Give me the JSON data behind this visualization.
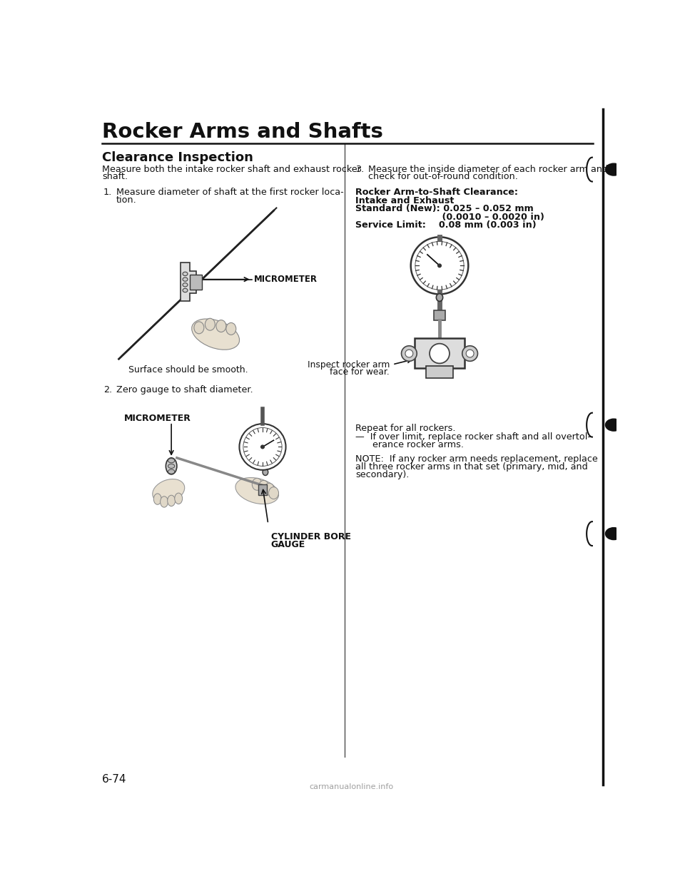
{
  "page_bg": "#ffffff",
  "title": "Rocker Arms and Shafts",
  "section": "Clearance Inspection",
  "left_col": {
    "intro_line1": "Measure both the intake rocker shaft and exhaust rocker",
    "intro_line2": "shaft.",
    "step1_num": "1.",
    "step1_line1": "Measure diameter of shaft at the first rocker loca-",
    "step1_line2": "tion.",
    "fig1_label": "MICROMETER",
    "fig1_caption": "Surface should be smooth.",
    "step2_num": "2.",
    "step2_text": "Zero gauge to shaft diameter.",
    "fig2_label": "MICROMETER",
    "fig2_caption_line1": "CYLINDER BORE",
    "fig2_caption_line2": "GAUGE"
  },
  "right_col": {
    "step3_num": "3.",
    "step3_line1": "Measure the inside diameter of each rocker arm and",
    "step3_line2": "check for out-of-round condition.",
    "spec_bold1": "Rocker Arm-to-Shaft Clearance:",
    "spec_bold2": "Intake and Exhaust",
    "spec_bold3": "Standard (New): 0.025 – 0.052 mm",
    "spec_bold4": "                           (0.0010 – 0.0020 in)",
    "spec_bold5": "Service Limit:    0.08 mm (0.003 in)",
    "fig3_caption1": "Inspect rocker arm",
    "fig3_caption2": "face for wear.",
    "repeat": "Repeat for all rockers.",
    "bullet": "—  If over limit, replace rocker shaft and all overtol-",
    "bullet2": "      erance rocker arms.",
    "note": "NOTE:  If any rocker arm needs replacement, replace",
    "note2": "all three rocker arms in that set (primary, mid, and",
    "note3": "secondary)."
  },
  "footer": "6-74",
  "watermark": "carmanualonline.info"
}
